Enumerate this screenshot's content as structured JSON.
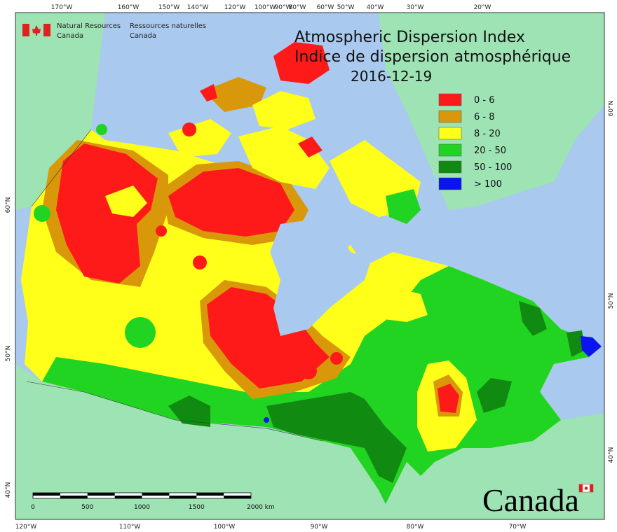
{
  "agency": {
    "en": [
      "Natural Resources",
      "Canada"
    ],
    "fr": [
      "Ressources naturelles",
      "Canada"
    ]
  },
  "title": [
    "Atmospheric Dispersion Index",
    "Indice de dispersion atmosphérique"
  ],
  "date": "2016-12-19",
  "legend": [
    {
      "label": "0 - 6",
      "color": "#ff1a1a"
    },
    {
      "label": "6 - 8",
      "color": "#d9980a"
    },
    {
      "label": "8 - 20",
      "color": "#ffff1a"
    },
    {
      "label": "20 - 50",
      "color": "#22d422"
    },
    {
      "label": "50 - 100",
      "color": "#118a11"
    },
    {
      "label": "> 100",
      "color": "#0a14ee"
    }
  ],
  "graticule": {
    "top": [
      "170°W",
      "160°W",
      "150°W",
      "140°W",
      "120°W",
      "100°W",
      "90°W",
      "80°W",
      "60°W",
      "50°W",
      "40°W",
      "30°W",
      "20°W"
    ],
    "bottom": [
      "120°W",
      "110°W",
      "100°W",
      "90°W",
      "80°W",
      "70°W"
    ],
    "left": [
      "60°N",
      "50°N",
      "40°N"
    ],
    "right": [
      "60°N",
      "50°N",
      "40°N"
    ]
  },
  "scale_bar": {
    "labels": [
      "0",
      "500",
      "1000",
      "1500",
      "2000 km"
    ]
  },
  "wordmark": "Canada"
}
